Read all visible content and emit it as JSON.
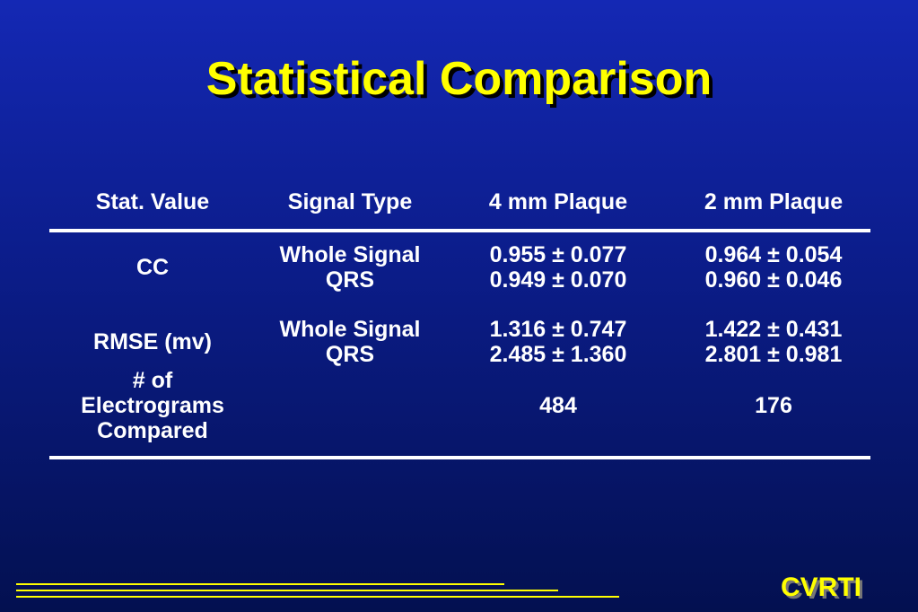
{
  "title": "Statistical Comparison",
  "table": {
    "header": [
      "Stat. Value",
      "Signal Type",
      "4 mm Plaque",
      "2 mm Plaque"
    ],
    "rows": [
      [
        [
          "CC"
        ],
        [
          "Whole Signal",
          "QRS"
        ],
        [
          "0.955 ± 0.077",
          "0.949 ± 0.070"
        ],
        [
          "0.964 ± 0.054",
          "0.960 ± 0.046"
        ]
      ],
      [
        [
          "RMSE (mv)"
        ],
        [
          "Whole Signal",
          "QRS"
        ],
        [
          "1.316 ± 0.747",
          "2.485 ± 1.360"
        ],
        [
          "1.422 ± 0.431",
          "2.801 ± 0.981"
        ]
      ],
      [
        [
          "# of",
          "Electrograms",
          "Compared"
        ],
        [],
        [
          "484"
        ],
        [
          "176"
        ]
      ]
    ]
  },
  "footer": {
    "logo": "CVRTI"
  }
}
